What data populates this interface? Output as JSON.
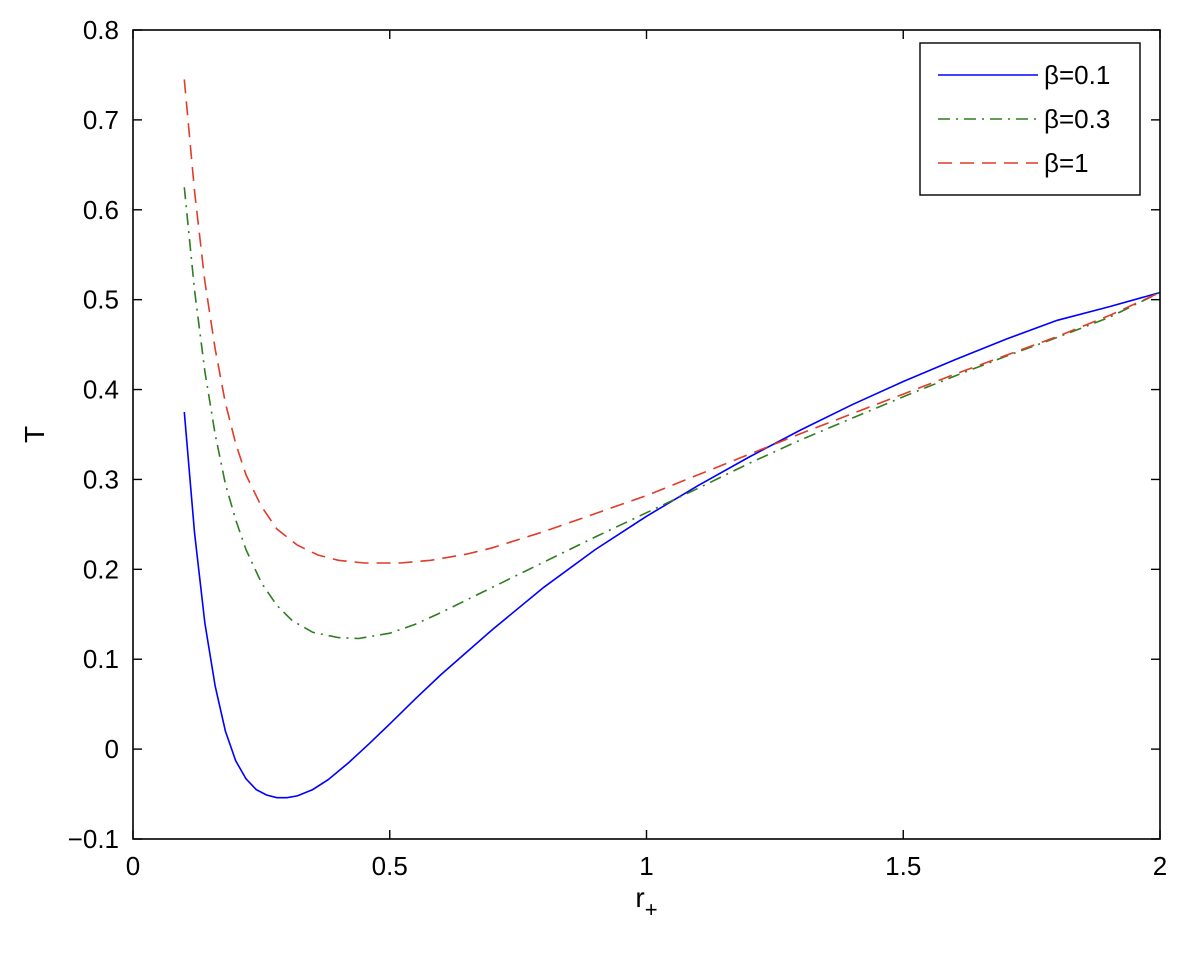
{
  "chart_data": {
    "type": "line",
    "title": "",
    "xlabel": "r",
    "xlabel_sub": "+",
    "ylabel": "T",
    "xlim": [
      0,
      2
    ],
    "ylim": [
      -0.1,
      0.8
    ],
    "x_ticks": [
      {
        "value": 0,
        "label": "0"
      },
      {
        "value": 0.5,
        "label": "0.5"
      },
      {
        "value": 1,
        "label": "1"
      },
      {
        "value": 1.5,
        "label": "1.5"
      },
      {
        "value": 2,
        "label": "2"
      }
    ],
    "y_ticks": [
      {
        "value": -0.1,
        "label": "−0.1"
      },
      {
        "value": 0,
        "label": "0"
      },
      {
        "value": 0.1,
        "label": "0.1"
      },
      {
        "value": 0.2,
        "label": "0.2"
      },
      {
        "value": 0.3,
        "label": "0.3"
      },
      {
        "value": 0.4,
        "label": "0.4"
      },
      {
        "value": 0.5,
        "label": "0.5"
      },
      {
        "value": 0.6,
        "label": "0.6"
      },
      {
        "value": 0.7,
        "label": "0.7"
      },
      {
        "value": 0.8,
        "label": "0.8"
      }
    ],
    "grid": false,
    "legend_position": "top-right",
    "series": [
      {
        "name": "β=0.1",
        "color": "#0000ff",
        "style": "solid",
        "x": [
          0.1,
          0.12,
          0.14,
          0.16,
          0.18,
          0.2,
          0.22,
          0.24,
          0.26,
          0.28,
          0.3,
          0.32,
          0.35,
          0.38,
          0.42,
          0.46,
          0.5,
          0.55,
          0.6,
          0.65,
          0.7,
          0.8,
          0.9,
          1.0,
          1.1,
          1.2,
          1.3,
          1.4,
          1.5,
          1.6,
          1.7,
          1.8,
          1.9,
          2.0
        ],
        "y": [
          0.375,
          0.24,
          0.14,
          0.07,
          0.02,
          -0.013,
          -0.033,
          -0.045,
          -0.051,
          -0.054,
          -0.054,
          -0.052,
          -0.045,
          -0.034,
          -0.015,
          0.006,
          0.028,
          0.056,
          0.083,
          0.108,
          0.133,
          0.18,
          0.222,
          0.259,
          0.293,
          0.325,
          0.355,
          0.383,
          0.409,
          0.433,
          0.456,
          0.477,
          0.492,
          0.508
        ]
      },
      {
        "name": "β=0.3",
        "color": "#2e7d1e",
        "style": "dashdot",
        "x": [
          0.1,
          0.12,
          0.14,
          0.16,
          0.18,
          0.2,
          0.22,
          0.25,
          0.28,
          0.31,
          0.35,
          0.4,
          0.44,
          0.5,
          0.55,
          0.6,
          0.7,
          0.8,
          0.9,
          1.0,
          1.1,
          1.2,
          1.3,
          1.4,
          1.5,
          1.6,
          1.7,
          1.8,
          1.9,
          2.0
        ],
        "y": [
          0.625,
          0.51,
          0.42,
          0.35,
          0.295,
          0.255,
          0.222,
          0.185,
          0.16,
          0.143,
          0.13,
          0.124,
          0.123,
          0.129,
          0.139,
          0.152,
          0.18,
          0.208,
          0.236,
          0.263,
          0.29,
          0.318,
          0.344,
          0.368,
          0.392,
          0.415,
          0.437,
          0.458,
          0.48,
          0.508
        ]
      },
      {
        "name": "β=1",
        "color": "#e03c28",
        "style": "dashed",
        "x": [
          0.1,
          0.12,
          0.14,
          0.16,
          0.18,
          0.2,
          0.22,
          0.25,
          0.28,
          0.32,
          0.36,
          0.4,
          0.45,
          0.52,
          0.58,
          0.65,
          0.7,
          0.8,
          0.9,
          1.0,
          1.1,
          1.2,
          1.3,
          1.4,
          1.5,
          1.6,
          1.7,
          1.8,
          1.9,
          2.0
        ],
        "y": [
          0.745,
          0.62,
          0.52,
          0.445,
          0.385,
          0.34,
          0.305,
          0.27,
          0.245,
          0.227,
          0.216,
          0.21,
          0.207,
          0.207,
          0.21,
          0.217,
          0.224,
          0.242,
          0.262,
          0.282,
          0.305,
          0.328,
          0.351,
          0.373,
          0.395,
          0.417,
          0.438,
          0.459,
          0.482,
          0.508
        ]
      }
    ]
  }
}
